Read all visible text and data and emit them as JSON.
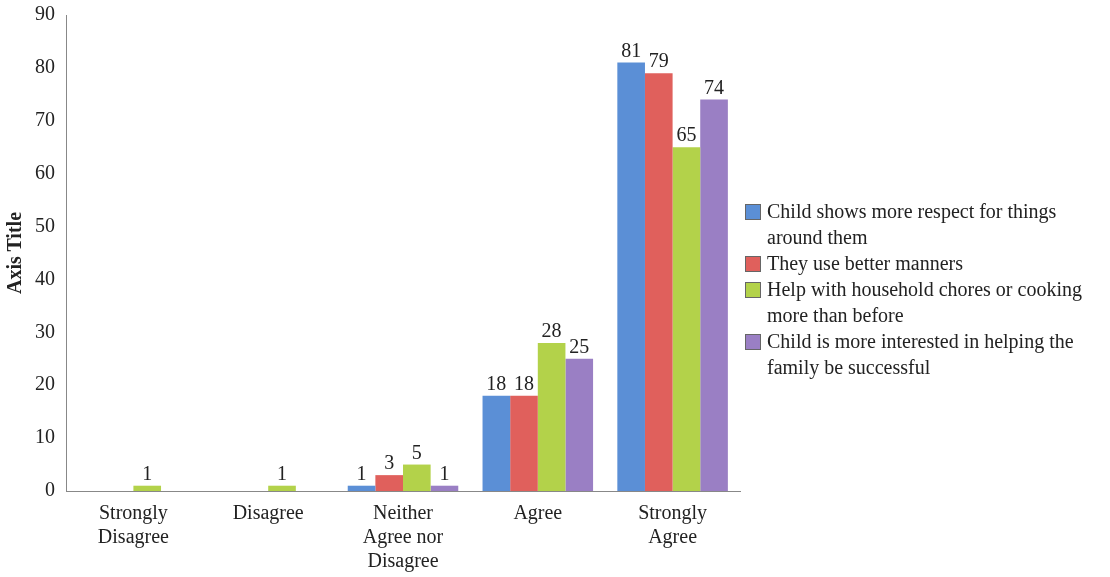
{
  "chart_data": {
    "type": "bar",
    "ylabel": "Axis Title",
    "categories": [
      "Strongly Disagree",
      "Disagree",
      "Neither Agree nor Disagree",
      "Agree",
      "Strongly Agree"
    ],
    "series": [
      {
        "name": "Child shows more respect for things around them",
        "color": "#5b8fd6",
        "values": [
          0,
          0,
          1,
          18,
          81
        ],
        "value_labels": [
          null,
          null,
          "1",
          "18",
          "81"
        ]
      },
      {
        "name": "They use better manners",
        "color": "#e0605c",
        "values": [
          0,
          0,
          3,
          18,
          79
        ],
        "value_labels": [
          null,
          null,
          "3",
          "18",
          "79"
        ]
      },
      {
        "name": "Help with household chores or cooking more than before",
        "color": "#b3d24a",
        "values": [
          1,
          1,
          5,
          28,
          65
        ],
        "value_labels": [
          "1",
          "1",
          "5",
          "28",
          "65"
        ]
      },
      {
        "name": "Child is more interested in helping the family be successful",
        "color": "#9a7fc4",
        "values": [
          0,
          0,
          1,
          25,
          74
        ],
        "value_labels": [
          null,
          null,
          "1",
          "25",
          "74"
        ]
      }
    ],
    "ylim": [
      0,
      90
    ],
    "yticks": [
      0,
      10,
      20,
      30,
      40,
      50,
      60,
      70,
      80,
      90
    ],
    "grid": false,
    "legend": "right"
  }
}
